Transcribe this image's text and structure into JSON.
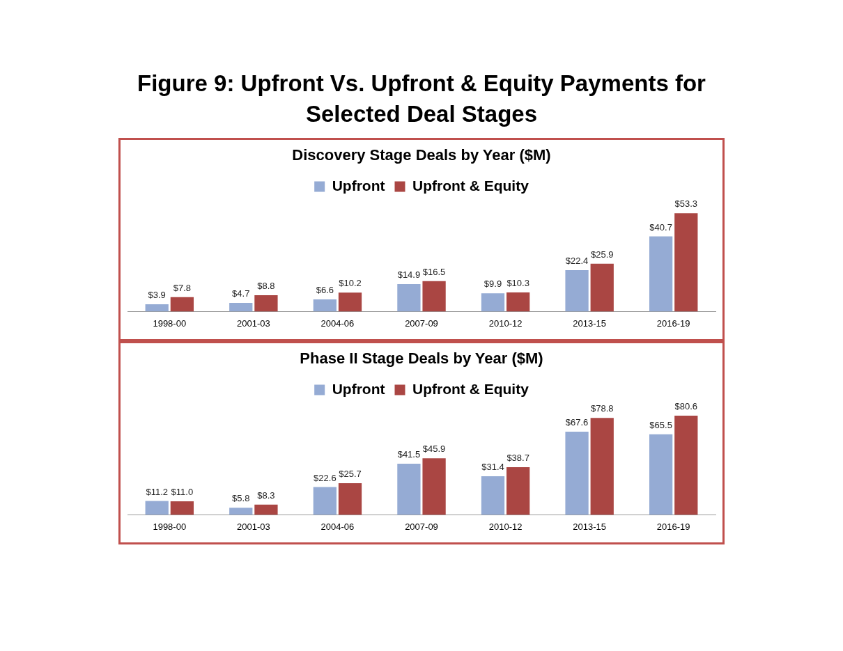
{
  "chart_data": [
    {
      "type": "bar",
      "title": "Figure 9:  Upfront Vs. Upfront & Equity Payments for Selected Deal Stages",
      "subtitle": "Discovery Stage Deals by Year ($M)",
      "categories": [
        "1998-00",
        "2001-03",
        "2004-06",
        "2007-09",
        "2010-12",
        "2013-15",
        "2016-19"
      ],
      "series": [
        {
          "name": "Upfront",
          "color": "#95abd4",
          "values": [
            3.9,
            4.7,
            6.6,
            14.9,
            9.9,
            22.4,
            40.7
          ],
          "value_labels": [
            "$3.9",
            "$4.7",
            "$6.6",
            "$14.9",
            "$9.9",
            "$22.4",
            "$40.7"
          ]
        },
        {
          "name": "Upfront & Equity",
          "color": "#aa4643",
          "values": [
            7.8,
            8.8,
            10.2,
            16.5,
            10.3,
            25.9,
            53.3
          ],
          "value_labels": [
            "$7.8",
            "$8.8",
            "$10.2",
            "$16.5",
            "$10.3",
            "$25.9",
            "$53.3"
          ]
        }
      ],
      "legend": "top",
      "grid": false,
      "tick_labels": "x"
    },
    {
      "type": "bar",
      "title": "Phase II Stage Deals by Year ($M)",
      "categories": [
        "1998-00",
        "2001-03",
        "2004-06",
        "2007-09",
        "2010-12",
        "2013-15",
        "2016-19"
      ],
      "series": [
        {
          "name": "Upfront",
          "color": "#95abd4",
          "values": [
            11.2,
            5.8,
            22.6,
            41.5,
            31.4,
            67.6,
            65.5
          ],
          "value_labels": [
            "$11.2",
            "$5.8",
            "$22.6",
            "$41.5",
            "$31.4",
            "$67.6",
            "$65.5"
          ]
        },
        {
          "name": "Upfront & Equity",
          "color": "#aa4643",
          "values": [
            11.0,
            8.3,
            25.7,
            45.9,
            38.7,
            78.8,
            80.6
          ],
          "value_labels": [
            "$11.0",
            "$8.3",
            "$25.7",
            "$45.9",
            "$38.7",
            "$78.8",
            "$80.6"
          ]
        }
      ],
      "legend": "top",
      "grid": false,
      "tick_labels": "x"
    }
  ]
}
